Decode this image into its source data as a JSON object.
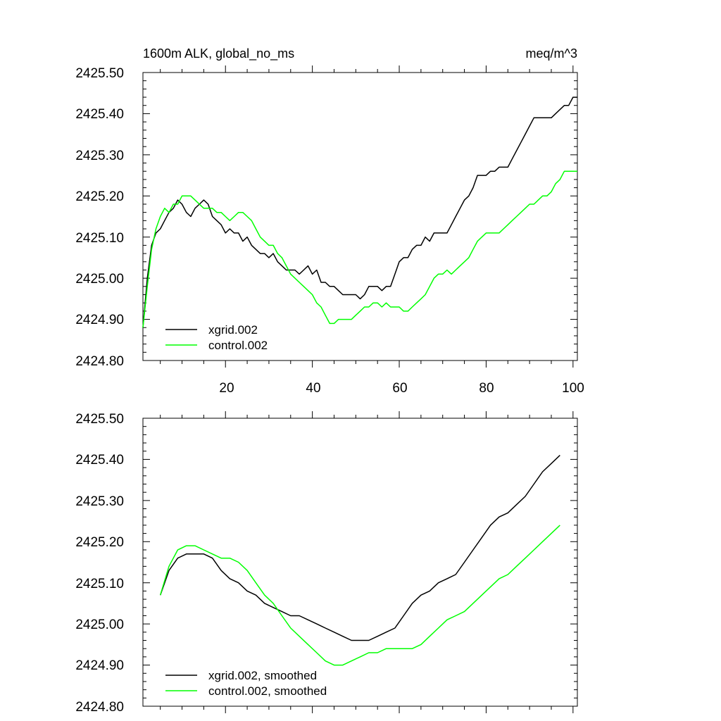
{
  "chart_data": [
    {
      "type": "line",
      "title_left": "1600m ALK, global_no_ms",
      "title_right": "meq/m^3",
      "xlabel": "",
      "ylabel": "",
      "xlim": [
        1,
        101
      ],
      "ylim": [
        2424.8,
        2425.5
      ],
      "yticks": [
        "2425.50",
        "2425.40",
        "2425.30",
        "2425.20",
        "2425.10",
        "2425.00",
        "2424.90",
        "2424.80"
      ],
      "xticks": [
        "20",
        "40",
        "60",
        "80",
        "100"
      ],
      "legend": [
        "xgrid.002",
        "control.002"
      ],
      "legend_position": "bottom-left",
      "series": [
        {
          "name": "xgrid.002",
          "color": "#000000",
          "x": [
            1,
            2,
            3,
            4,
            5,
            6,
            7,
            8,
            9,
            10,
            11,
            12,
            13,
            14,
            15,
            16,
            17,
            18,
            19,
            20,
            21,
            22,
            23,
            24,
            25,
            26,
            27,
            28,
            29,
            30,
            31,
            32,
            33,
            34,
            35,
            36,
            37,
            38,
            39,
            40,
            41,
            42,
            43,
            44,
            45,
            46,
            47,
            48,
            49,
            50,
            51,
            52,
            53,
            54,
            55,
            56,
            57,
            58,
            59,
            60,
            61,
            62,
            63,
            64,
            65,
            66,
            67,
            68,
            69,
            70,
            71,
            72,
            73,
            74,
            75,
            76,
            77,
            78,
            79,
            80,
            81,
            82,
            83,
            84,
            85,
            86,
            87,
            88,
            89,
            90,
            91,
            92,
            93,
            94,
            95,
            96,
            97,
            98,
            99,
            100,
            101
          ],
          "values": [
            2424.88,
            2425.0,
            2425.08,
            2425.11,
            2425.12,
            2425.14,
            2425.16,
            2425.17,
            2425.19,
            2425.18,
            2425.16,
            2425.15,
            2425.17,
            2425.18,
            2425.19,
            2425.18,
            2425.15,
            2425.14,
            2425.13,
            2425.11,
            2425.12,
            2425.11,
            2425.11,
            2425.09,
            2425.1,
            2425.08,
            2425.07,
            2425.06,
            2425.06,
            2425.05,
            2425.06,
            2425.04,
            2425.03,
            2425.02,
            2425.02,
            2425.02,
            2425.01,
            2425.02,
            2425.03,
            2425.01,
            2425.02,
            2424.99,
            2424.99,
            2424.98,
            2424.98,
            2424.97,
            2424.96,
            2424.96,
            2424.96,
            2424.96,
            2424.95,
            2424.96,
            2424.98,
            2424.98,
            2424.98,
            2424.97,
            2424.98,
            2424.98,
            2425.01,
            2425.04,
            2425.05,
            2425.05,
            2425.07,
            2425.08,
            2425.08,
            2425.1,
            2425.09,
            2425.11,
            2425.11,
            2425.11,
            2425.11,
            2425.13,
            2425.15,
            2425.17,
            2425.19,
            2425.2,
            2425.22,
            2425.25,
            2425.25,
            2425.25,
            2425.26,
            2425.26,
            2425.27,
            2425.27,
            2425.27,
            2425.29,
            2425.31,
            2425.33,
            2425.35,
            2425.37,
            2425.39,
            2425.39,
            2425.39,
            2425.39,
            2425.39,
            2425.4,
            2425.41,
            2425.42,
            2425.42,
            2425.44,
            2425.44
          ]
        },
        {
          "name": "control.002",
          "color": "#00ff00",
          "x": [
            1,
            2,
            3,
            4,
            5,
            6,
            7,
            8,
            9,
            10,
            11,
            12,
            13,
            14,
            15,
            16,
            17,
            18,
            19,
            20,
            21,
            22,
            23,
            24,
            25,
            26,
            27,
            28,
            29,
            30,
            31,
            32,
            33,
            34,
            35,
            36,
            37,
            38,
            39,
            40,
            41,
            42,
            43,
            44,
            45,
            46,
            47,
            48,
            49,
            50,
            51,
            52,
            53,
            54,
            55,
            56,
            57,
            58,
            59,
            60,
            61,
            62,
            63,
            64,
            65,
            66,
            67,
            68,
            69,
            70,
            71,
            72,
            73,
            74,
            75,
            76,
            77,
            78,
            79,
            80,
            81,
            82,
            83,
            84,
            85,
            86,
            87,
            88,
            89,
            90,
            91,
            92,
            93,
            94,
            95,
            96,
            97,
            98,
            99,
            100,
            101
          ],
          "values": [
            2424.88,
            2424.98,
            2425.07,
            2425.12,
            2425.15,
            2425.17,
            2425.16,
            2425.18,
            2425.18,
            2425.2,
            2425.2,
            2425.2,
            2425.19,
            2425.18,
            2425.17,
            2425.17,
            2425.17,
            2425.16,
            2425.16,
            2425.15,
            2425.14,
            2425.15,
            2425.16,
            2425.16,
            2425.15,
            2425.14,
            2425.12,
            2425.1,
            2425.09,
            2425.08,
            2425.08,
            2425.06,
            2425.05,
            2425.03,
            2425.01,
            2425.0,
            2424.99,
            2424.98,
            2424.97,
            2424.96,
            2424.94,
            2424.93,
            2424.91,
            2424.89,
            2424.89,
            2424.9,
            2424.9,
            2424.9,
            2424.9,
            2424.91,
            2424.92,
            2424.93,
            2424.93,
            2424.94,
            2424.94,
            2424.93,
            2424.94,
            2424.93,
            2424.93,
            2424.93,
            2424.92,
            2424.92,
            2424.93,
            2424.94,
            2424.95,
            2424.96,
            2424.98,
            2425.0,
            2425.01,
            2425.01,
            2425.02,
            2425.01,
            2425.02,
            2425.03,
            2425.04,
            2425.05,
            2425.07,
            2425.09,
            2425.1,
            2425.11,
            2425.11,
            2425.11,
            2425.11,
            2425.12,
            2425.13,
            2425.14,
            2425.15,
            2425.16,
            2425.17,
            2425.18,
            2425.18,
            2425.19,
            2425.2,
            2425.2,
            2425.21,
            2425.23,
            2425.24,
            2425.26,
            2425.26,
            2425.26,
            2425.26
          ]
        }
      ]
    },
    {
      "type": "line",
      "title_left": "",
      "title_right": "",
      "xlabel": "",
      "ylabel": "",
      "xlim": [
        1,
        101
      ],
      "ylim": [
        2424.8,
        2425.5
      ],
      "yticks": [
        "2425.50",
        "2425.40",
        "2425.30",
        "2425.20",
        "2425.10",
        "2425.00",
        "2424.90",
        "2424.80"
      ],
      "xticks": [],
      "legend": [
        "xgrid.002, smoothed",
        "control.002, smoothed"
      ],
      "legend_position": "bottom-left",
      "series": [
        {
          "name": "xgrid.002, smoothed",
          "color": "#000000",
          "x": [
            5,
            7,
            9,
            11,
            13,
            15,
            17,
            19,
            21,
            23,
            25,
            27,
            29,
            31,
            33,
            35,
            37,
            39,
            41,
            43,
            45,
            47,
            49,
            51,
            53,
            55,
            57,
            59,
            61,
            63,
            65,
            67,
            69,
            71,
            73,
            75,
            77,
            79,
            81,
            83,
            85,
            87,
            89,
            91,
            93,
            95,
            97
          ],
          "values": [
            2425.07,
            2425.13,
            2425.16,
            2425.17,
            2425.17,
            2425.17,
            2425.16,
            2425.13,
            2425.11,
            2425.1,
            2425.08,
            2425.07,
            2425.05,
            2425.04,
            2425.03,
            2425.02,
            2425.02,
            2425.01,
            2425.0,
            2424.99,
            2424.98,
            2424.97,
            2424.96,
            2424.96,
            2424.96,
            2424.97,
            2424.98,
            2424.99,
            2425.02,
            2425.05,
            2425.07,
            2425.08,
            2425.1,
            2425.11,
            2425.12,
            2425.15,
            2425.18,
            2425.21,
            2425.24,
            2425.26,
            2425.27,
            2425.29,
            2425.31,
            2425.34,
            2425.37,
            2425.39,
            2425.41
          ]
        },
        {
          "name": "control.002, smoothed",
          "color": "#00ff00",
          "x": [
            5,
            7,
            9,
            11,
            13,
            15,
            17,
            19,
            21,
            23,
            25,
            27,
            29,
            31,
            33,
            35,
            37,
            39,
            41,
            43,
            45,
            47,
            49,
            51,
            53,
            55,
            57,
            59,
            61,
            63,
            65,
            67,
            69,
            71,
            73,
            75,
            77,
            79,
            81,
            83,
            85,
            87,
            89,
            91,
            93,
            95,
            97
          ],
          "values": [
            2425.07,
            2425.14,
            2425.18,
            2425.19,
            2425.19,
            2425.18,
            2425.17,
            2425.16,
            2425.16,
            2425.15,
            2425.13,
            2425.1,
            2425.07,
            2425.05,
            2425.02,
            2424.99,
            2424.97,
            2424.95,
            2424.93,
            2424.91,
            2424.9,
            2424.9,
            2424.91,
            2424.92,
            2424.93,
            2424.93,
            2424.94,
            2424.94,
            2424.94,
            2424.94,
            2424.95,
            2424.97,
            2424.99,
            2425.01,
            2425.02,
            2425.03,
            2425.05,
            2425.07,
            2425.09,
            2425.11,
            2425.12,
            2425.14,
            2425.16,
            2425.18,
            2425.2,
            2425.22,
            2425.24
          ]
        }
      ]
    }
  ]
}
